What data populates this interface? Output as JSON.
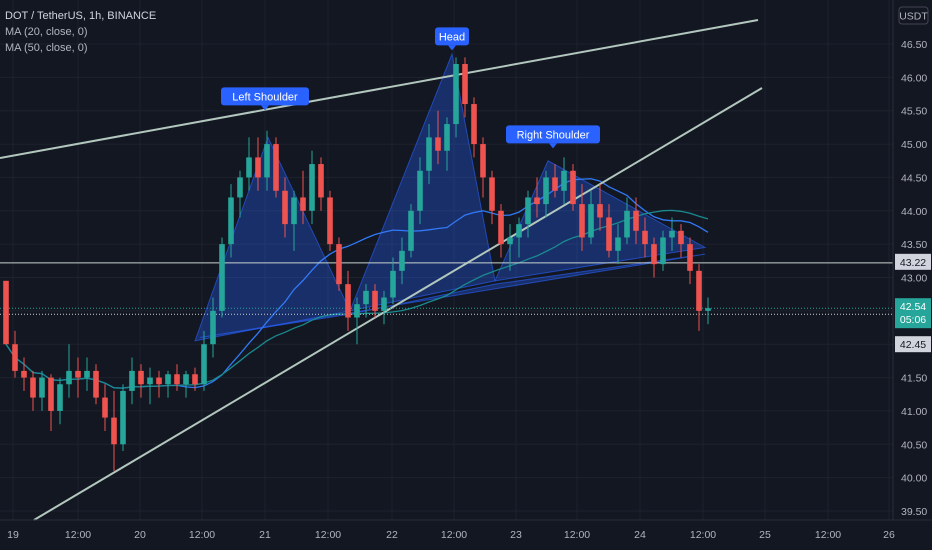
{
  "legend": {
    "symbol": "DOT / TetherUS, 1h, BINANCE",
    "ma20": "MA (20, close, 0)",
    "ma50": "MA (50, close, 0)"
  },
  "currency": "USDT",
  "colors": {
    "background": "#131722",
    "up": "#26a69a",
    "down": "#ef5350",
    "pattern_fill": "#2962ff",
    "ma20": "#3179f5",
    "ma50": "#1a8a8f",
    "trendline": "#b2c7bd",
    "annotation": "#2962ff",
    "price_badge": "#26a69a"
  },
  "chart_data": {
    "type": "candlestick",
    "title": "DOT / TetherUS, 1h, BINANCE",
    "y_axis": {
      "ticks": [
        "46.50",
        "46.00",
        "45.50",
        "45.00",
        "44.50",
        "44.00",
        "43.50",
        "43.00",
        "42.50",
        "42.00",
        "41.50",
        "41.00",
        "40.50",
        "40.00",
        "39.50"
      ],
      "range": [
        39.4,
        46.8
      ]
    },
    "x_axis": {
      "ticks": [
        "19",
        "12:00",
        "20",
        "12:00",
        "21",
        "12:00",
        "22",
        "12:00",
        "23",
        "12:00",
        "24",
        "12:00",
        "25",
        "12:00",
        "26"
      ]
    },
    "price_levels": [
      {
        "label": "43.22",
        "value": 43.22,
        "style": "line"
      },
      {
        "label": "42.54",
        "value": 42.54,
        "style": "current",
        "countdown": "05:06"
      },
      {
        "label": "42.45",
        "value": 42.45,
        "style": "dotted"
      }
    ],
    "annotations": [
      {
        "text": "Left Shoulder"
      },
      {
        "text": "Head"
      },
      {
        "text": "Right Shoulder"
      }
    ],
    "pattern": "head and shoulders",
    "path_points": [
      [
        42.95,
        42.95,
        42.0,
        42.0
      ],
      [
        42.0,
        42.2,
        41.5,
        41.6
      ],
      [
        41.6,
        41.8,
        41.3,
        41.5
      ],
      [
        41.5,
        41.6,
        41.0,
        41.2
      ],
      [
        41.2,
        41.6,
        41.0,
        41.5
      ],
      [
        41.5,
        41.55,
        40.7,
        41.0
      ],
      [
        41.0,
        41.5,
        40.8,
        41.4
      ],
      [
        41.4,
        42.0,
        41.2,
        41.6
      ],
      [
        41.6,
        41.8,
        41.2,
        41.5
      ],
      [
        41.5,
        41.8,
        41.3,
        41.6
      ],
      [
        41.6,
        41.7,
        41.1,
        41.2
      ],
      [
        41.2,
        41.4,
        40.7,
        40.9
      ],
      [
        40.9,
        41.3,
        40.1,
        40.5
      ],
      [
        40.5,
        41.4,
        40.4,
        41.3
      ],
      [
        41.3,
        41.8,
        41.1,
        41.6
      ],
      [
        41.6,
        41.7,
        41.2,
        41.4
      ],
      [
        41.4,
        41.65,
        41.1,
        41.5
      ],
      [
        41.5,
        41.6,
        41.2,
        41.4
      ],
      [
        41.4,
        41.6,
        41.2,
        41.55
      ],
      [
        41.55,
        41.7,
        41.3,
        41.4
      ],
      [
        41.4,
        41.6,
        41.2,
        41.55
      ],
      [
        41.55,
        41.65,
        41.3,
        41.4
      ],
      [
        41.4,
        42.2,
        41.3,
        42.0
      ],
      [
        42.0,
        42.7,
        41.8,
        42.5
      ],
      [
        42.5,
        43.6,
        42.4,
        43.5
      ],
      [
        43.5,
        44.4,
        43.3,
        44.2
      ],
      [
        44.2,
        44.6,
        43.9,
        44.5
      ],
      [
        44.5,
        45.1,
        44.3,
        44.8
      ],
      [
        44.8,
        45.1,
        44.3,
        44.5
      ],
      [
        44.5,
        45.2,
        44.3,
        45.0
      ],
      [
        45.0,
        45.1,
        44.2,
        44.3
      ],
      [
        44.3,
        44.5,
        43.6,
        43.8
      ],
      [
        43.8,
        44.3,
        43.4,
        44.2
      ],
      [
        44.2,
        44.6,
        43.8,
        44.0
      ],
      [
        44.0,
        44.9,
        43.8,
        44.7
      ],
      [
        44.7,
        44.8,
        44.0,
        44.2
      ],
      [
        44.2,
        44.3,
        43.4,
        43.5
      ],
      [
        43.5,
        43.6,
        42.8,
        42.9
      ],
      [
        42.9,
        43.1,
        42.2,
        42.4
      ],
      [
        42.4,
        42.7,
        42.0,
        42.6
      ],
      [
        42.6,
        42.9,
        42.4,
        42.8
      ],
      [
        42.8,
        42.9,
        42.4,
        42.5
      ],
      [
        42.5,
        42.8,
        42.3,
        42.7
      ],
      [
        42.7,
        43.3,
        42.6,
        43.1
      ],
      [
        43.1,
        43.6,
        42.9,
        43.4
      ],
      [
        43.4,
        44.1,
        43.3,
        44.0
      ],
      [
        44.0,
        44.8,
        43.8,
        44.6
      ],
      [
        44.6,
        45.3,
        44.4,
        45.1
      ],
      [
        45.1,
        45.5,
        44.7,
        44.9
      ],
      [
        44.9,
        45.4,
        44.6,
        45.3
      ],
      [
        45.3,
        46.3,
        45.1,
        46.2
      ],
      [
        46.2,
        46.3,
        45.4,
        45.6
      ],
      [
        45.6,
        45.7,
        44.8,
        45.0
      ],
      [
        45.0,
        45.1,
        44.2,
        44.5
      ],
      [
        44.5,
        44.6,
        43.8,
        44.0
      ],
      [
        44.0,
        44.1,
        43.3,
        43.5
      ],
      [
        43.5,
        43.8,
        43.1,
        43.6
      ],
      [
        43.6,
        43.9,
        43.3,
        43.8
      ],
      [
        43.8,
        44.3,
        43.6,
        44.2
      ],
      [
        44.2,
        44.5,
        43.9,
        44.1
      ],
      [
        44.1,
        44.6,
        43.9,
        44.5
      ],
      [
        44.5,
        44.7,
        44.2,
        44.3
      ],
      [
        44.3,
        44.8,
        44.1,
        44.6
      ],
      [
        44.6,
        44.7,
        44.0,
        44.1
      ],
      [
        44.1,
        44.4,
        43.4,
        43.6
      ],
      [
        43.6,
        44.3,
        43.5,
        44.1
      ],
      [
        44.1,
        44.4,
        43.7,
        43.9
      ],
      [
        43.9,
        44.1,
        43.3,
        43.4
      ],
      [
        43.4,
        43.8,
        43.2,
        43.6
      ],
      [
        43.6,
        44.2,
        43.5,
        44.0
      ],
      [
        44.0,
        44.2,
        43.5,
        43.7
      ],
      [
        43.7,
        43.9,
        43.3,
        43.5
      ],
      [
        43.5,
        43.6,
        43.0,
        43.2
      ],
      [
        43.2,
        43.7,
        43.1,
        43.6
      ],
      [
        43.6,
        43.9,
        43.4,
        43.7
      ],
      [
        43.7,
        43.8,
        43.3,
        43.5
      ],
      [
        43.5,
        43.6,
        42.9,
        43.1
      ],
      [
        43.1,
        43.2,
        42.2,
        42.5
      ],
      [
        42.5,
        42.7,
        42.3,
        42.54
      ]
    ]
  }
}
